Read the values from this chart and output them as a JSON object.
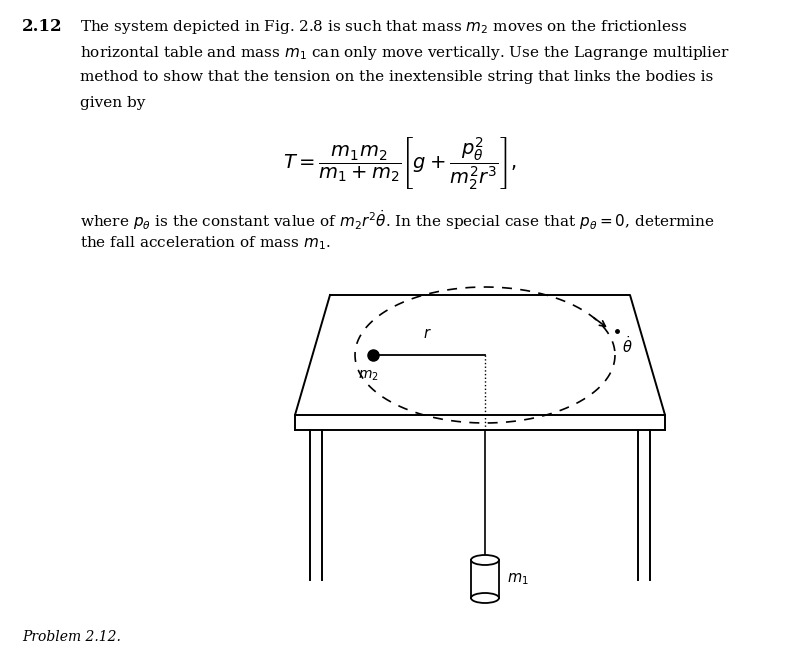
{
  "title_num": "2.12",
  "main_text_lines": [
    "The system depicted in Fig. 2.8 is such that mass $m_2$ moves on the frictionless",
    "horizontal table and mass $m_1$ can only move vertically. Use the Lagrange multiplier",
    "method to show that the tension on the inextensible string that links the bodies is",
    "given by"
  ],
  "formula": "$T = \\dfrac{m_1 m_2}{m_1 + m_2} \\left[ g + \\dfrac{p_\\theta^2}{m_2^2 r^3} \\right],$",
  "text2_lines": [
    "where $p_\\theta$ is the constant value of $m_2 r^2 \\dot{\\theta}$. In the special case that $p_\\theta = 0$, determine",
    "the fall acceleration of mass $m_1$."
  ],
  "caption": "Problem 2.12.",
  "bg_color": "#ffffff",
  "text_color": "#000000",
  "title_fontsize": 12,
  "body_fontsize": 11,
  "formula_fontsize": 14,
  "caption_fontsize": 10
}
